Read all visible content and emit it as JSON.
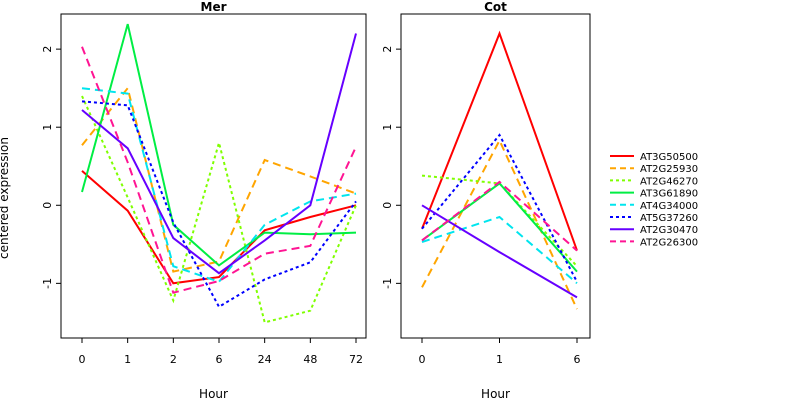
{
  "ylabel": "centered expression",
  "chart_data": [
    {
      "type": "line",
      "title": "Mer",
      "xlabel": "Hour",
      "ylabel": "centered expression",
      "categories": [
        "0",
        "1",
        "2",
        "6",
        "24",
        "48",
        "72"
      ],
      "ylim": [
        -1.7,
        2.45
      ],
      "yticks": [
        -1,
        0,
        1,
        2
      ],
      "series": [
        {
          "name": "AT3G50500",
          "color": "#ff0000",
          "dash": "solid",
          "values": [
            0.44,
            -0.07,
            -1.0,
            -0.92,
            -0.32,
            -0.15,
            0.0
          ]
        },
        {
          "name": "AT2G25930",
          "color": "#ffa500",
          "dash": "dashed",
          "values": [
            0.77,
            1.5,
            -0.85,
            -0.72,
            0.58,
            0.37,
            0.15
          ]
        },
        {
          "name": "AT2G46270",
          "color": "#7fff00",
          "dash": "dotted",
          "values": [
            1.4,
            0.1,
            -1.22,
            0.8,
            -1.5,
            -1.35,
            0.0
          ]
        },
        {
          "name": "AT3G61890",
          "color": "#00ee44",
          "dash": "solid",
          "values": [
            0.17,
            2.32,
            -0.25,
            -0.77,
            -0.35,
            -0.37,
            -0.35
          ]
        },
        {
          "name": "AT4G34000",
          "color": "#00e5ee",
          "dash": "dashed",
          "values": [
            1.5,
            1.43,
            -0.78,
            -0.98,
            -0.25,
            0.05,
            0.15
          ]
        },
        {
          "name": "AT5G37260",
          "color": "#0000ff",
          "dash": "dotted",
          "values": [
            1.33,
            1.28,
            -0.22,
            -1.3,
            -0.95,
            -0.73,
            0.05
          ]
        },
        {
          "name": "AT2G30470",
          "color": "#6600ff",
          "dash": "solid",
          "values": [
            1.22,
            0.73,
            -0.42,
            -0.87,
            -0.45,
            0.0,
            2.2
          ]
        },
        {
          "name": "AT2G26300",
          "color": "#ff1493",
          "dash": "dashed",
          "values": [
            2.03,
            0.55,
            -1.12,
            -0.97,
            -0.62,
            -0.52,
            0.75
          ]
        }
      ]
    },
    {
      "type": "line",
      "title": "Cot",
      "xlabel": "Hour",
      "categories": [
        "0",
        "1",
        "6"
      ],
      "ylim": [
        -1.7,
        2.45
      ],
      "yticks": [
        -1,
        0,
        1,
        2
      ],
      "series": [
        {
          "name": "AT3G50500",
          "color": "#ff0000",
          "dash": "solid",
          "values": [
            -0.3,
            2.2,
            -0.58
          ]
        },
        {
          "name": "AT2G25930",
          "color": "#ffa500",
          "dash": "dashed",
          "values": [
            -1.05,
            0.83,
            -1.33
          ]
        },
        {
          "name": "AT2G46270",
          "color": "#7fff00",
          "dash": "dotted",
          "values": [
            0.38,
            0.28,
            -0.78
          ]
        },
        {
          "name": "AT3G61890",
          "color": "#00ee44",
          "dash": "solid",
          "values": [
            -0.45,
            0.28,
            -0.85
          ]
        },
        {
          "name": "AT4G34000",
          "color": "#00e5ee",
          "dash": "dashed",
          "values": [
            -0.47,
            -0.15,
            -1.0
          ]
        },
        {
          "name": "AT5G37260",
          "color": "#0000ff",
          "dash": "dotted",
          "values": [
            -0.3,
            0.9,
            -0.98
          ]
        },
        {
          "name": "AT2G30470",
          "color": "#6600ff",
          "dash": "solid",
          "values": [
            0.0,
            -0.6,
            -1.18
          ]
        },
        {
          "name": "AT2G26300",
          "color": "#ff1493",
          "dash": "dashed",
          "values": [
            -0.45,
            0.3,
            -0.58
          ]
        }
      ]
    }
  ]
}
